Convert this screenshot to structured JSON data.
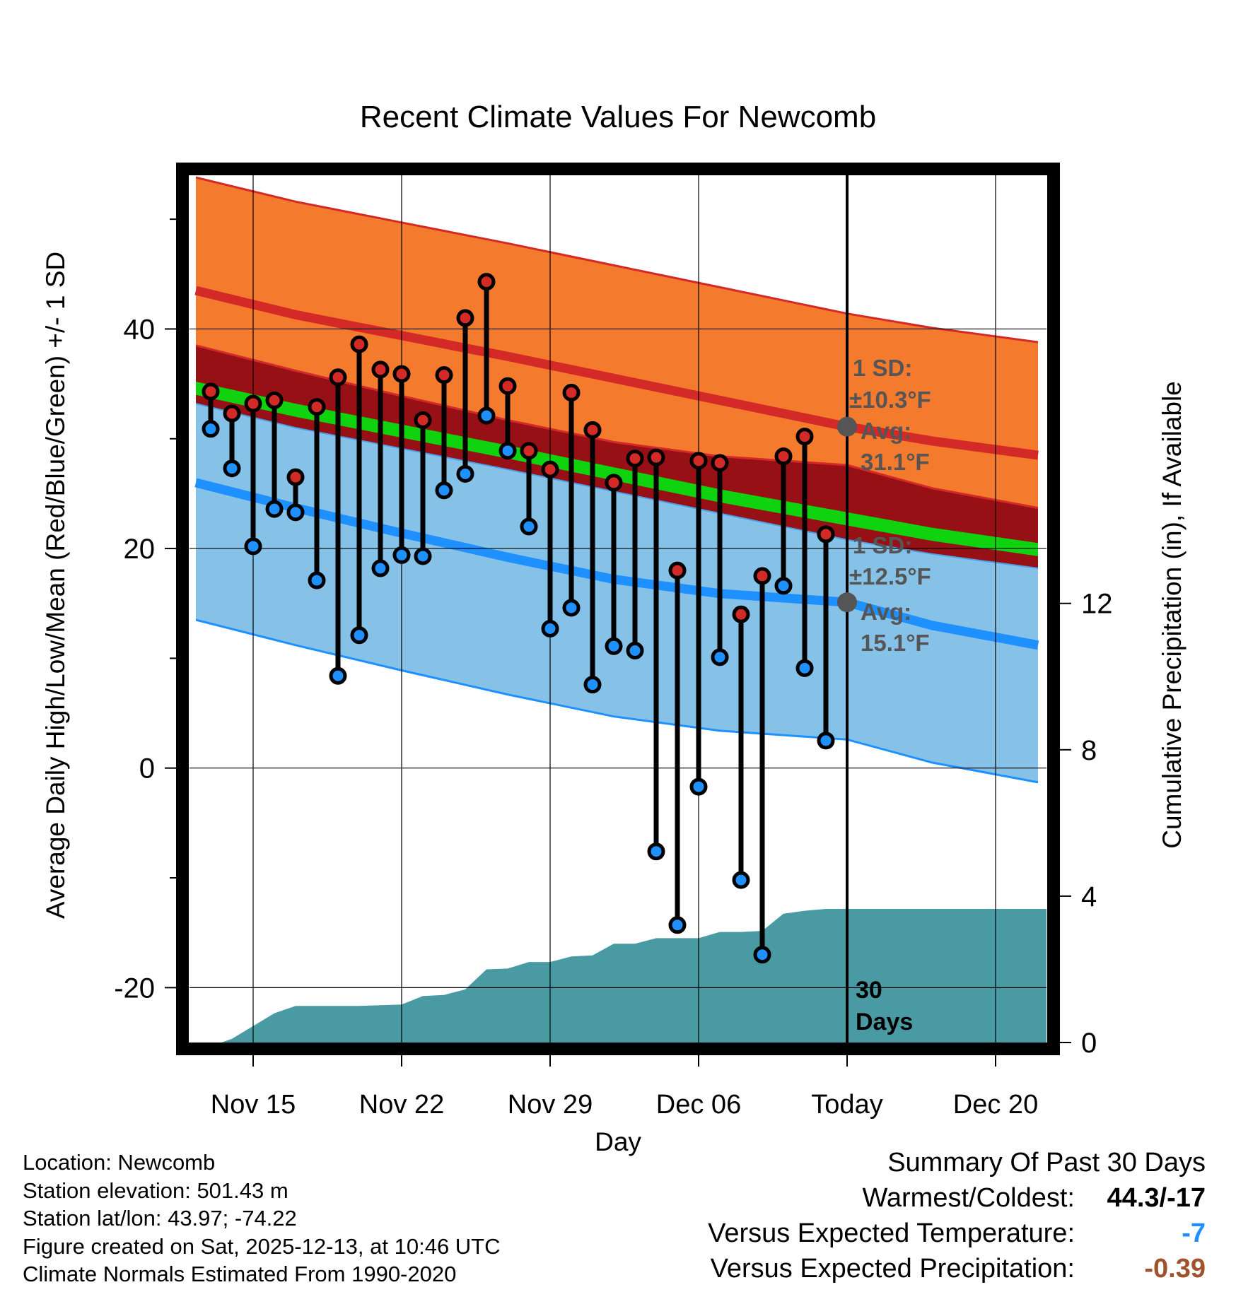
{
  "chart_data": {
    "type": "climate-range",
    "title": "Recent Climate Values For Newcomb",
    "xlabel": "Day",
    "ylabel_left": "Average Daily High/Low/Mean (Red/Blue/Green) +/- 1 SD",
    "ylabel_right": "Cumulative Precipitation (in), If Available",
    "xlim": [
      0,
      40.4
    ],
    "ylim_left": [
      -25,
      54
    ],
    "ylim_right": [
      0,
      23.7
    ],
    "yticks_left": [
      -20,
      0,
      20,
      40
    ],
    "yticks_right": [
      0,
      4,
      8,
      12
    ],
    "x_ticks": [
      {
        "x": 3,
        "label": "Nov 15"
      },
      {
        "x": 10,
        "label": "Nov 22"
      },
      {
        "x": 17,
        "label": "Nov 29"
      },
      {
        "x": 24,
        "label": "Dec 06"
      },
      {
        "x": 31,
        "label": "Today"
      },
      {
        "x": 38,
        "label": "Dec 20"
      }
    ],
    "today_x": 31,
    "today_label": [
      "30",
      "Days"
    ],
    "normals": {
      "x": [
        0.3,
        5,
        10,
        15,
        20,
        25,
        31,
        35,
        40
      ],
      "high_mean": [
        43.5,
        41.3,
        39.4,
        37.5,
        35.5,
        33.5,
        31.1,
        29.8,
        28.5
      ],
      "high_sd": 10.3,
      "low_mean": [
        26.0,
        23.7,
        21.4,
        19.2,
        17.2,
        15.9,
        15.1,
        13.0,
        11.2
      ],
      "low_sd": 12.5,
      "mean_upper": [
        35.2,
        33.2,
        31.3,
        29.4,
        27.4,
        25.4,
        23.3,
        21.9,
        20.5
      ],
      "mean_lower": [
        34.0,
        32.0,
        30.1,
        28.2,
        26.2,
        24.2,
        22.1,
        20.7,
        19.3
      ],
      "high_sd_label": [
        "1 SD:",
        "±10.3°F"
      ],
      "high_avg_label": [
        "Avg:",
        "31.1°F"
      ],
      "low_sd_label": [
        "1 SD:",
        "±12.5°F"
      ],
      "low_avg_label": [
        "Avg:",
        "15.1°F"
      ]
    },
    "daily": [
      {
        "x": 1,
        "high": 34.3,
        "low": 30.9
      },
      {
        "x": 2,
        "high": 32.3,
        "low": 27.3
      },
      {
        "x": 3,
        "high": 33.2,
        "low": 20.2
      },
      {
        "x": 4,
        "high": 33.5,
        "low": 23.6
      },
      {
        "x": 5,
        "high": 26.5,
        "low": 23.3
      },
      {
        "x": 6,
        "high": 32.9,
        "low": 17.1
      },
      {
        "x": 7,
        "high": 35.6,
        "low": 8.4
      },
      {
        "x": 8,
        "high": 38.6,
        "low": 12.1
      },
      {
        "x": 9,
        "high": 36.3,
        "low": 18.2
      },
      {
        "x": 10,
        "high": 35.9,
        "low": 19.4
      },
      {
        "x": 11,
        "high": 31.7,
        "low": 19.3
      },
      {
        "x": 12,
        "high": 35.8,
        "low": 25.3
      },
      {
        "x": 13,
        "high": 41.0,
        "low": 26.8
      },
      {
        "x": 14,
        "high": 44.3,
        "low": 32.1
      },
      {
        "x": 15,
        "high": 34.8,
        "low": 28.9
      },
      {
        "x": 16,
        "high": 28.9,
        "low": 22.0
      },
      {
        "x": 17,
        "high": 27.2,
        "low": 12.7
      },
      {
        "x": 18,
        "high": 34.2,
        "low": 14.6
      },
      {
        "x": 19,
        "high": 30.8,
        "low": 7.6
      },
      {
        "x": 20,
        "high": 26.0,
        "low": 11.1
      },
      {
        "x": 21,
        "high": 28.2,
        "low": 10.7
      },
      {
        "x": 22,
        "high": 28.3,
        "low": -7.6
      },
      {
        "x": 23,
        "high": 18.0,
        "low": -14.3
      },
      {
        "x": 24,
        "high": 28.0,
        "low": -1.7
      },
      {
        "x": 25,
        "high": 27.8,
        "low": 10.1
      },
      {
        "x": 26,
        "high": 14.0,
        "low": -10.2
      },
      {
        "x": 27,
        "high": 17.5,
        "low": -17.0
      },
      {
        "x": 28,
        "high": 28.4,
        "low": 16.6
      },
      {
        "x": 29,
        "high": 30.2,
        "low": 9.1
      },
      {
        "x": 30,
        "high": 21.3,
        "low": 2.5
      }
    ],
    "precip_cumulative": {
      "x": [
        0.3,
        1.5,
        2,
        3,
        4,
        5,
        6,
        7,
        8,
        9,
        10,
        11,
        12,
        13,
        14,
        15,
        16,
        17,
        18,
        19,
        20,
        21,
        22,
        23,
        24,
        25,
        26,
        27,
        28,
        29,
        30,
        31,
        35,
        40.4
      ],
      "values": [
        0,
        0,
        0.1,
        0.45,
        0.8,
        1.0,
        1.0,
        1.0,
        1.0,
        1.02,
        1.04,
        1.27,
        1.3,
        1.45,
        2.0,
        2.02,
        2.2,
        2.2,
        2.35,
        2.38,
        2.7,
        2.7,
        2.85,
        2.85,
        2.85,
        3.02,
        3.02,
        3.05,
        3.52,
        3.6,
        3.65,
        3.65,
        3.65,
        3.65
      ]
    }
  },
  "info": {
    "location": "Location: Newcomb",
    "elevation": "Station elevation: 501.43 m",
    "latlon": "Station lat/lon: 43.97; -74.22",
    "created": "Figure created on Sat, 2025-12-13, at 10:46 UTC",
    "normals_period": "Climate Normals Estimated From 1990-2020"
  },
  "summary": {
    "title": "Summary Of Past 30 Days",
    "warmest_label": "Warmest/Coldest:",
    "warmest_value": "44.3/-17",
    "temp_label": "Versus Expected Temperature:",
    "temp_value": "-7",
    "precip_label": "Versus Expected Precipitation:",
    "precip_value": "-0.39"
  },
  "colors": {
    "high_band": "#f47a2e",
    "high_line": "#d42a27",
    "mid_band": "#961016",
    "mean_band": "#0fd30f",
    "low_band": "#86c2e8",
    "low_line": "#1e90ff",
    "precip": "#4a9aa3",
    "high_marker": "#d42a27",
    "low_marker": "#1e90ff",
    "label_gray": "#555555",
    "temp_value": "#1e90ff",
    "precip_value": "#a0522d"
  }
}
